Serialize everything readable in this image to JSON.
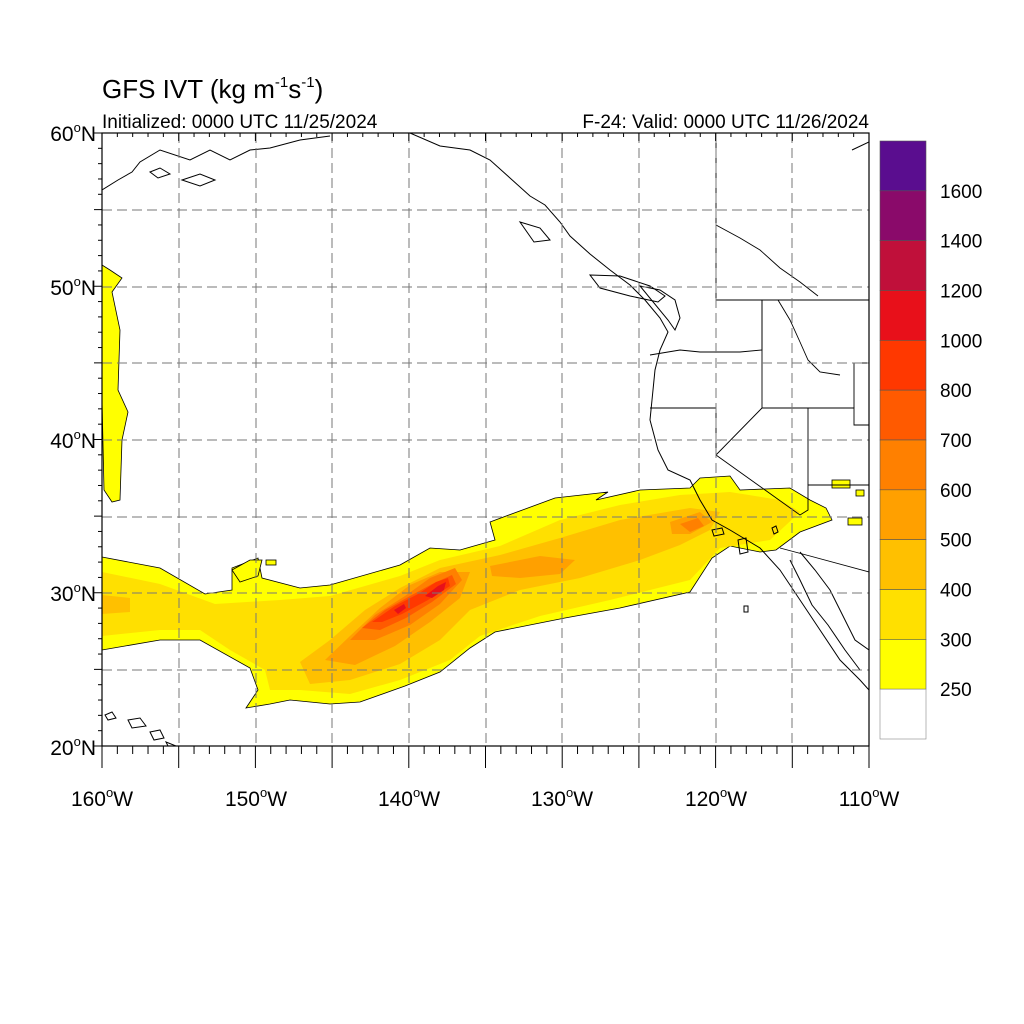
{
  "header": {
    "title": "GFS IVT (kg m",
    "title_unit_exp1": "-1",
    "title_unit_mid": "s",
    "title_unit_exp2": "-1",
    "title_close": ")",
    "initialized": "Initialized: 0000 UTC 11/25/2024",
    "valid": "F-24: Valid: 0000 UTC 11/26/2024"
  },
  "map": {
    "lon_range": [
      -160,
      -110
    ],
    "lat_range": [
      20,
      60
    ],
    "lat_ticks": [
      {
        "value": 60,
        "label": "60",
        "suffix": "N"
      },
      {
        "value": 50,
        "label": "50",
        "suffix": "N"
      },
      {
        "value": 40,
        "label": "40",
        "suffix": "N"
      },
      {
        "value": 30,
        "label": "30",
        "suffix": "N"
      },
      {
        "value": 20,
        "label": "20",
        "suffix": "N"
      }
    ],
    "lon_ticks": [
      {
        "value": -160,
        "label": "160",
        "suffix": "W"
      },
      {
        "value": -150,
        "label": "150",
        "suffix": "W"
      },
      {
        "value": -140,
        "label": "140",
        "suffix": "W"
      },
      {
        "value": -130,
        "label": "130",
        "suffix": "W"
      },
      {
        "value": -120,
        "label": "120",
        "suffix": "W"
      },
      {
        "value": -110,
        "label": "110",
        "suffix": "W"
      }
    ],
    "grid": true,
    "grid_style": "dashed"
  },
  "colorbar": {
    "levels": [
      "1600",
      "1400",
      "1200",
      "1000",
      "800",
      "700",
      "600",
      "500",
      "400",
      "300",
      "250"
    ],
    "colors": [
      "#5a0d8f",
      "#8a0a6a",
      "#c0103a",
      "#e8101a",
      "#ff3800",
      "#ff5a00",
      "#ff8000",
      "#ffa000",
      "#ffc000",
      "#ffe000",
      "#ffff00",
      "#ffffff"
    ]
  },
  "fill_colors": {
    "c250": "#ffff00",
    "c300": "#ffe000",
    "c400": "#ffc000",
    "c500": "#ffa000",
    "c600": "#ff8000",
    "c700": "#ff5a00",
    "c800": "#ff3800",
    "c1000": "#e8101a"
  }
}
